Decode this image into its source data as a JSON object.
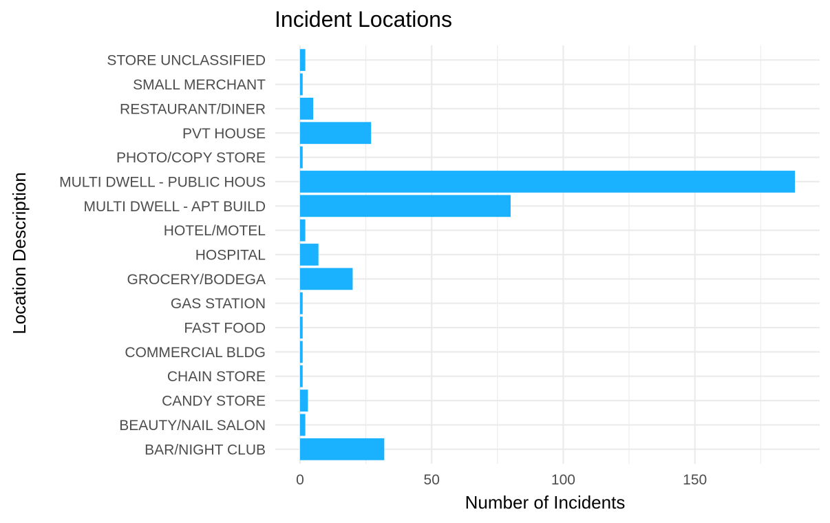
{
  "chart_data": {
    "type": "bar",
    "orientation": "horizontal",
    "title": "Incident Locations",
    "xlabel": "Number of Incidents",
    "ylabel": "Location Description",
    "categories": [
      "BAR/NIGHT CLUB",
      "BEAUTY/NAIL SALON",
      "CANDY STORE",
      "CHAIN STORE",
      "COMMERCIAL BLDG",
      "FAST FOOD",
      "GAS STATION",
      "GROCERY/BODEGA",
      "HOSPITAL",
      "HOTEL/MOTEL",
      "MULTI DWELL - APT BUILD",
      "MULTI DWELL - PUBLIC HOUS",
      "PHOTO/COPY STORE",
      "PVT HOUSE",
      "RESTAURANT/DINER",
      "SMALL MERCHANT",
      "STORE UNCLASSIFIED"
    ],
    "values": [
      32,
      2,
      3,
      1,
      1,
      1,
      1,
      20,
      7,
      2,
      80,
      188,
      1,
      27,
      5,
      1,
      2
    ],
    "xlim": [
      -9.4,
      197.4
    ],
    "xticks": [
      0,
      50,
      100,
      150
    ],
    "xtick_labels": [
      "0",
      "50",
      "100",
      "150"
    ],
    "grid": true,
    "legend": "none",
    "colors": {
      "bar": "#1AB2FF",
      "grid": "#EBEBEB",
      "tick_text": "#4D4D4D"
    }
  }
}
